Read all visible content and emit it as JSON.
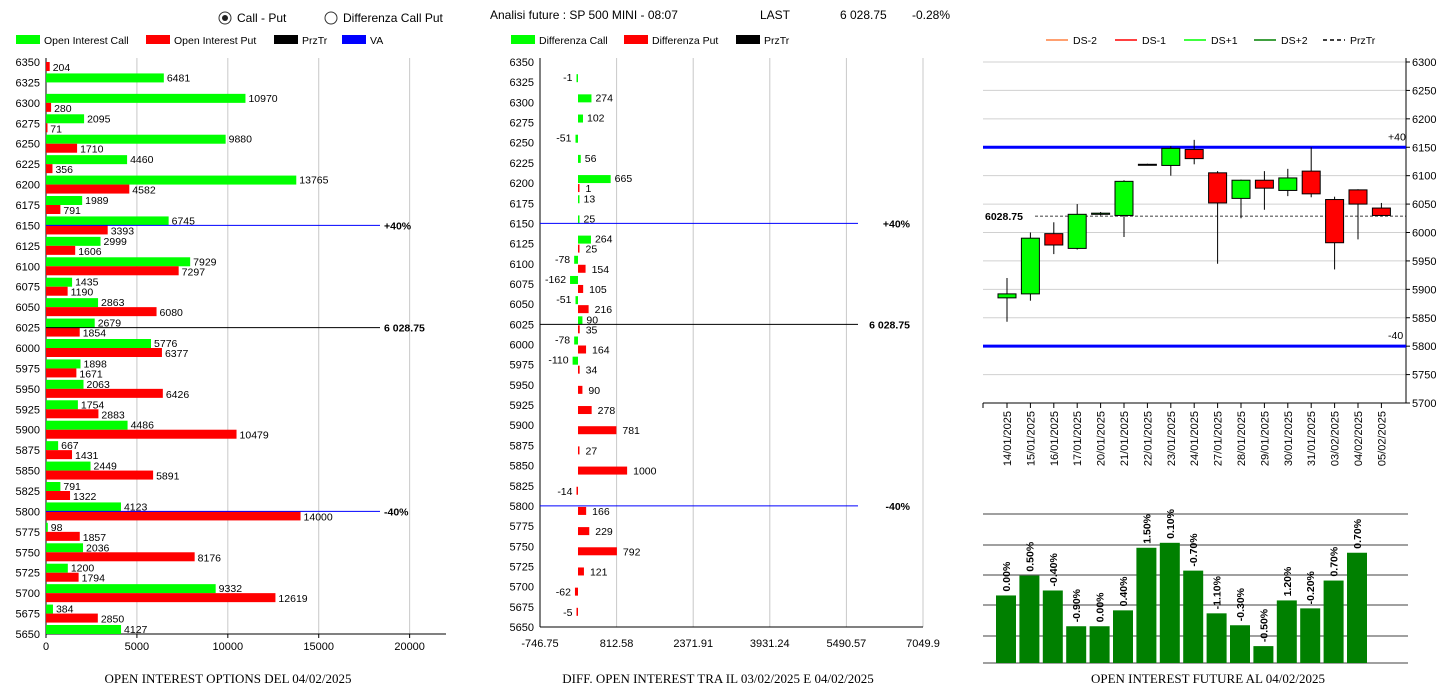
{
  "header": {
    "radio_call_put": "Call - Put",
    "radio_diff": "Differenza Call Put",
    "info": "Analisi future : SP 500 MINI - 08:07",
    "last_label": "LAST",
    "last_value": "6 028.75",
    "change": "-0.28%"
  },
  "colors": {
    "green": "#00ff00",
    "red": "#ff0000",
    "blue": "#0000ff",
    "dark_green": "#008000",
    "black": "#000000"
  },
  "chart_data": [
    {
      "type": "bar",
      "orientation": "horizontal",
      "title": "OPEN INTEREST OPTIONS DEL 04/02/2025",
      "legend": [
        "Open Interest Call",
        "Open Interest Put",
        "PrzTr",
        "VA"
      ],
      "xlim": [
        0,
        22000
      ],
      "xticks": [
        0,
        5000,
        10000,
        15000,
        20000
      ],
      "categories": [
        "6350",
        "6325",
        "6300",
        "6275",
        "6250",
        "6225",
        "6200",
        "6175",
        "6150",
        "6125",
        "6100",
        "6075",
        "6050",
        "6025",
        "6000",
        "5975",
        "5950",
        "5925",
        "5900",
        "5875",
        "5850",
        "5825",
        "5800",
        "5775",
        "5750",
        "5725",
        "5700",
        "5675",
        "5650"
      ],
      "series": [
        {
          "name": "Open Interest Call",
          "values": [
            null,
            6481,
            10970,
            2095,
            9880,
            4460,
            13765,
            1989,
            6745,
            2999,
            7929,
            1435,
            2863,
            2679,
            5776,
            1898,
            2063,
            1754,
            4486,
            667,
            2449,
            791,
            4123,
            98,
            2036,
            1200,
            9332,
            384,
            4127
          ]
        },
        {
          "name": "Open Interest Put",
          "values": [
            204,
            null,
            280,
            71,
            1710,
            356,
            4582,
            791,
            3393,
            1606,
            7297,
            1190,
            6080,
            1854,
            6377,
            1671,
            6426,
            2883,
            10479,
            1431,
            5891,
            1322,
            14000,
            1857,
            8176,
            1794,
            12619,
            2850,
            null
          ]
        }
      ],
      "reference_lines": [
        {
          "strike": "6150",
          "label": "+40%",
          "color": "blue"
        },
        {
          "strike": "6025",
          "label": "6 028.75",
          "color": "black"
        },
        {
          "strike": "5800",
          "label": "-40%",
          "color": "blue"
        }
      ]
    },
    {
      "type": "bar",
      "orientation": "horizontal",
      "title": "DIFF. OPEN INTEREST TRA IL 03/02/2025 E 04/02/2025",
      "legend": [
        "Differenza Call",
        "Differenza Put",
        "PrzTr"
      ],
      "xlim": [
        -746.75,
        7049.9
      ],
      "xticks": [
        "-746.75",
        "812.58",
        "2371.91",
        "3931.24",
        "5490.57",
        "7049.9"
      ],
      "categories": [
        "6350",
        "6325",
        "6300",
        "6275",
        "6250",
        "6225",
        "6200",
        "6175",
        "6150",
        "6125",
        "6100",
        "6075",
        "6050",
        "6025",
        "6000",
        "5975",
        "5950",
        "5925",
        "5900",
        "5875",
        "5850",
        "5825",
        "5800",
        "5775",
        "5750",
        "5725",
        "5700",
        "5675",
        "5650"
      ],
      "series": [
        {
          "name": "Differenza Call",
          "values": [
            null,
            -1,
            274,
            102,
            -51,
            56,
            665,
            13,
            25,
            264,
            -78,
            -162,
            -51,
            90,
            -78,
            -110,
            null,
            null,
            null,
            null,
            null,
            null,
            null,
            null,
            null,
            null,
            null,
            null,
            null
          ]
        },
        {
          "name": "Differenza Put",
          "values": [
            null,
            null,
            null,
            null,
            null,
            null,
            1,
            null,
            null,
            25,
            154,
            105,
            216,
            35,
            164,
            34,
            90,
            278,
            781,
            27,
            1000,
            -14,
            166,
            229,
            792,
            121,
            -62,
            -5,
            null
          ]
        }
      ],
      "reference_lines": [
        {
          "strike": "6150",
          "label": "+40%",
          "color": "blue"
        },
        {
          "strike": "6025",
          "label": "6 028.75",
          "color": "black"
        },
        {
          "strike": "5800",
          "label": "-40%",
          "color": "blue"
        }
      ]
    },
    {
      "type": "candlestick",
      "legend": [
        "DS-2",
        "DS-1",
        "DS+1",
        "DS+2",
        "PrzTr"
      ],
      "legend_colors": [
        "#ff8040",
        "#ff0000",
        "#00ff00",
        "#008000",
        "#000000"
      ],
      "ylim": [
        5700,
        6300
      ],
      "yticks": [
        "6300",
        "6250",
        "6200",
        "6150",
        "6100",
        "6050",
        "6000",
        "5950",
        "5900",
        "5850",
        "5800",
        "5750",
        "5700"
      ],
      "dates": [
        "14/01/2025",
        "15/01/2025",
        "16/01/2025",
        "17/01/2025",
        "20/01/2025",
        "21/01/2025",
        "22/01/2025",
        "23/01/2025",
        "24/01/2025",
        "27/01/2025",
        "28/01/2025",
        "29/01/2025",
        "30/01/2025",
        "31/01/2025",
        "03/02/2025",
        "04/02/2025",
        "05/02/2025"
      ],
      "candles": [
        {
          "o": 5885,
          "h": 5920,
          "l": 5843,
          "c": 5892
        },
        {
          "o": 5892,
          "h": 6000,
          "l": 5880,
          "c": 5990
        },
        {
          "o": 5998,
          "h": 6018,
          "l": 5962,
          "c": 5978
        },
        {
          "o": 5972,
          "h": 6050,
          "l": 5970,
          "c": 6032
        },
        {
          "o": 6032,
          "h": 6036,
          "l": 6030,
          "c": 6034
        },
        {
          "o": 6030,
          "h": 6092,
          "l": 5992,
          "c": 6090
        },
        {
          "o": 6120,
          "h": 6121,
          "l": 6119,
          "c": 6120
        },
        {
          "o": 6118,
          "h": 6152,
          "l": 6100,
          "c": 6148
        },
        {
          "o": 6146,
          "h": 6163,
          "l": 6120,
          "c": 6130
        },
        {
          "o": 6105,
          "h": 6108,
          "l": 5945,
          "c": 6052
        },
        {
          "o": 6060,
          "h": 6093,
          "l": 6025,
          "c": 6092
        },
        {
          "o": 6092,
          "h": 6108,
          "l": 6040,
          "c": 6078
        },
        {
          "o": 6074,
          "h": 6112,
          "l": 6064,
          "c": 6096
        },
        {
          "o": 6108,
          "h": 6150,
          "l": 6062,
          "c": 6068
        },
        {
          "o": 6058,
          "h": 6063,
          "l": 5935,
          "c": 5982
        },
        {
          "o": 6075,
          "h": 6076,
          "l": 5988,
          "c": 6050
        },
        {
          "o": 6043,
          "h": 6052,
          "l": 6028,
          "c": 6030
        }
      ],
      "last_price": {
        "value": 6028.75,
        "label": "6028.75"
      },
      "bands": [
        {
          "value": 6150,
          "label": "+40",
          "color": "blue"
        },
        {
          "value": 5800,
          "label": "-40",
          "color": "blue"
        }
      ]
    },
    {
      "type": "bar",
      "title": "OPEN INTEREST FUTURE AL 04/02/2025",
      "labels": [
        "0.00%",
        "0.50%",
        "-0.40%",
        "-0.90%",
        "0.00%",
        "0.40%",
        "1.50%",
        "0.10%",
        "-0.70%",
        "-1.10%",
        "-0.30%",
        "-0.50%",
        "1.20%",
        "-0.20%",
        "0.70%",
        "0.70%"
      ],
      "values": [
        68,
        88,
        73,
        37,
        37,
        53,
        116,
        121,
        93,
        50,
        38,
        17,
        63,
        55,
        83,
        111
      ],
      "ylim": [
        0,
        150
      ]
    }
  ]
}
